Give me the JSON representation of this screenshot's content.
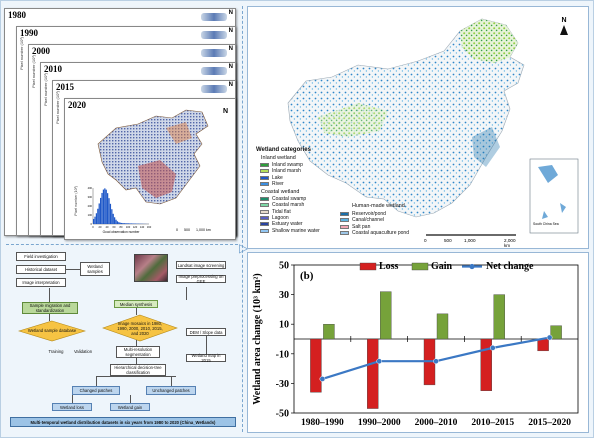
{
  "stack": {
    "years": [
      "1980",
      "1990",
      "2000",
      "2010",
      "2015",
      "2020"
    ],
    "north": "N",
    "pixel_axis_label": "Pixel number (10³)",
    "hist_xlabel": "Good observation number",
    "hist_ticks_x": [
      "0",
      "20",
      "40",
      "60",
      "80",
      "100",
      "120",
      "140",
      "160"
    ],
    "hist_ticks_y": [
      "0",
      "100",
      "200",
      "300",
      "400"
    ],
    "scale": [
      "0",
      "500",
      "1,000 km"
    ]
  },
  "flow": {
    "field": "Field investigation",
    "historical": "Historical dataset",
    "interpretation": "Image interpretation",
    "samples": "Wetland samples",
    "landsat": "Landsat image screening",
    "preprocess": "Image preprocessing on GEE",
    "integration": "Sample migration and standardization",
    "database": "Wetland sample database",
    "median": "Median synthesis",
    "image_mosaics": "Image mosaics in 1980, 1990, 2000, 2010, 2015, and 2020",
    "dem": "DEM / Slope data",
    "multires": "Multi-resolution segmentation",
    "map2015": "Wetland map in 2015",
    "hierarchical": "Hierarchical decision-tree classification",
    "training": "Training",
    "validation": "Validation",
    "changed": "Changed patches",
    "unchanged": "Unchanged patches",
    "loss": "Wetland loss",
    "gain": "Wetland gain",
    "footer": "Multi-temporal wetland distribution datasets in six years from 1980 to 2020 (China_Wetlands)"
  },
  "map": {
    "north": "N",
    "categories_title": "Wetland categories",
    "inland_head": "Inland wetland",
    "inland": [
      {
        "label": "Inland swamp",
        "color": "#2e9e3c"
      },
      {
        "label": "Inland marsh",
        "color": "#b5e05a"
      },
      {
        "label": "Lake",
        "color": "#1f58c8"
      },
      {
        "label": "River",
        "color": "#3b8fe2"
      }
    ],
    "coastal_head": "Coastal wetland",
    "coastal": [
      {
        "label": "Coastal swamp",
        "color": "#1d8c6a"
      },
      {
        "label": "Coastal marsh",
        "color": "#7dd8a6"
      },
      {
        "label": "Tidal flat",
        "color": "#e6dccb"
      },
      {
        "label": "Lagoon",
        "color": "#5860c0"
      },
      {
        "label": "Estuary water",
        "color": "#2a44a0"
      },
      {
        "label": "Shallow marine water",
        "color": "#92c6f2"
      }
    ],
    "human_head": "Human-made wetland",
    "human": [
      {
        "label": "Reservoir/pond",
        "color": "#1b6fa8"
      },
      {
        "label": "Canal/channel",
        "color": "#5eb3e0"
      },
      {
        "label": "Salt pan",
        "color": "#f2a7b4"
      },
      {
        "label": "Coastal aquaculture pond",
        "color": "#9ec7e8"
      }
    ],
    "scale": [
      "0",
      "500",
      "1,000",
      "2,000 km"
    ],
    "inset_label": "South China Sea"
  },
  "chart_data": {
    "type": "bar",
    "panel_label": "(b)",
    "categories": [
      "1980–1990",
      "1990–2000",
      "2000–2010",
      "2010–2015",
      "2015–2020"
    ],
    "series": [
      {
        "name": "Loss",
        "color": "#d42020",
        "values": [
          -36,
          -47,
          -31,
          -35,
          -8
        ]
      },
      {
        "name": "Gain",
        "color": "#76a23a",
        "values": [
          10,
          32,
          17,
          30,
          9
        ]
      }
    ],
    "line": {
      "name": "Net change",
      "color": "#3b78c4",
      "values": [
        -27,
        -15,
        -15,
        -6,
        1
      ]
    },
    "ylabel": "Wetland area change (10³ km²)",
    "ylim": [
      -50,
      50
    ],
    "yticks": [
      -50,
      -30,
      -10,
      10,
      30,
      50
    ],
    "legend_position": "top"
  }
}
